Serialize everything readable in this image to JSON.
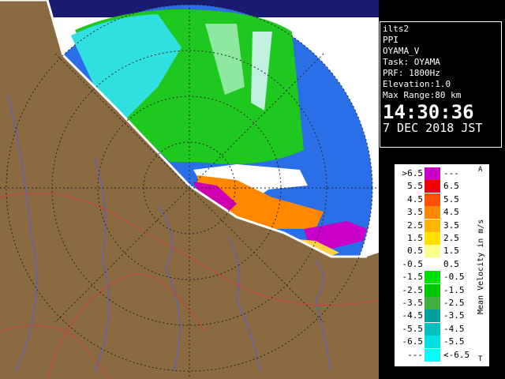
{
  "info": {
    "lines": [
      "ilts2",
      "PPI",
      "OYAMA_V",
      "Task: OYAMA",
      "PRF: 1800Hz",
      "Elevation:1.0",
      "Max Range:80 km"
    ],
    "time": "14:30:36",
    "date": "7 DEC 2018 JST"
  },
  "legend": {
    "axis_label": "Mean Velocity in m/s",
    "top_mark": "A",
    "bottom_mark": "T",
    "rows": [
      {
        "left": ">6.5",
        "right": "---",
        "color": "#c800c8"
      },
      {
        "left": "5.5",
        "right": "6.5",
        "color": "#f00000"
      },
      {
        "left": "4.5",
        "right": "5.5",
        "color": "#ff5000"
      },
      {
        "left": "3.5",
        "right": "4.5",
        "color": "#ff8800"
      },
      {
        "left": "2.5",
        "right": "3.5",
        "color": "#ffb400"
      },
      {
        "left": "1.5",
        "right": "2.5",
        "color": "#ffe000"
      },
      {
        "left": "0.5",
        "right": "1.5",
        "color": "#ffff90"
      },
      {
        "left": "-0.5",
        "right": "0.5",
        "color": "#ffffff"
      },
      {
        "left": "-1.5",
        "right": "-0.5",
        "color": "#00e000"
      },
      {
        "left": "-2.5",
        "right": "-1.5",
        "color": "#00c800"
      },
      {
        "left": "-3.5",
        "right": "-2.5",
        "color": "#40b040"
      },
      {
        "left": "-4.5",
        "right": "-3.5",
        "color": "#00a0a0"
      },
      {
        "left": "-5.5",
        "right": "-4.5",
        "color": "#00c0c0"
      },
      {
        "left": "-6.5",
        "right": "-5.5",
        "color": "#00e0e0"
      },
      {
        "left": "---",
        "right": "<-6.5",
        "color": "#00ffff"
      }
    ]
  }
}
